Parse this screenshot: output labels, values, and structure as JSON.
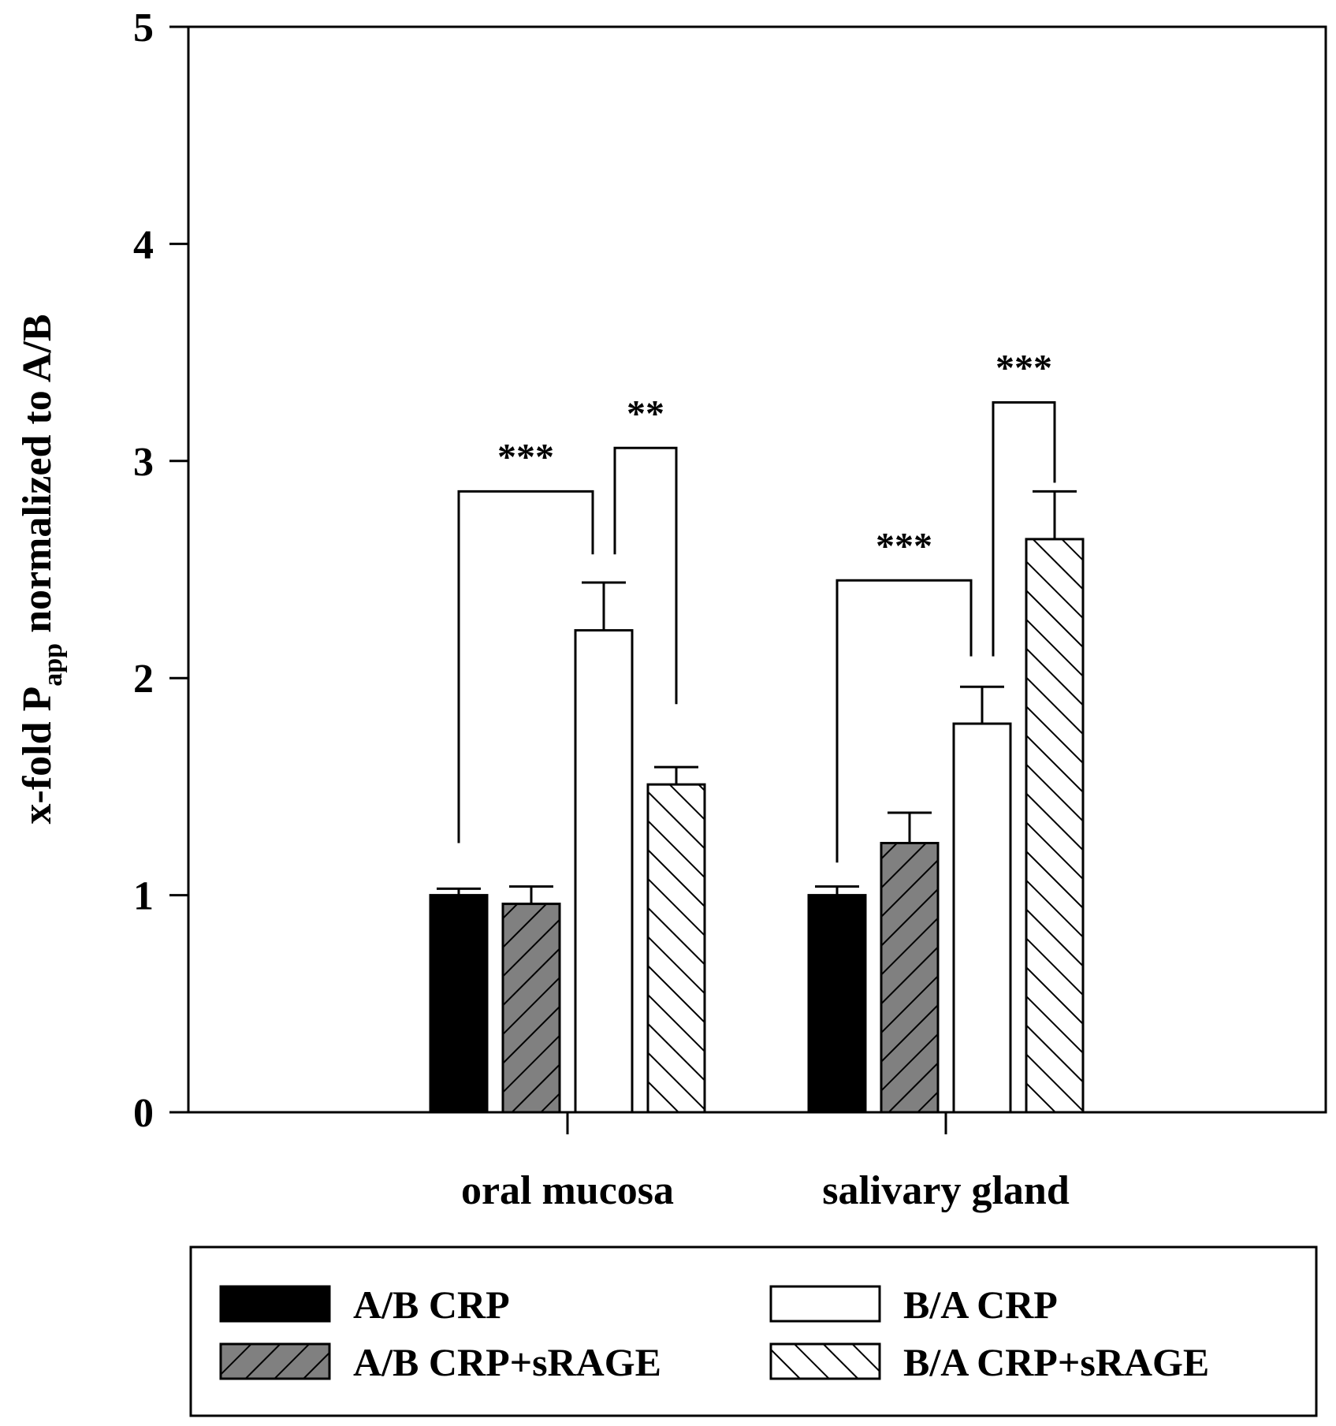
{
  "chart_data": {
    "type": "bar",
    "ylabel_main": "x-fold P",
    "ylabel_sub": "app",
    "ylabel_tail": " normalized to A/B",
    "ylim": [
      0,
      5
    ],
    "yticks": [
      "0",
      "1",
      "2",
      "3",
      "4",
      "5"
    ],
    "categories": [
      "oral mucosa",
      "salivary  gland"
    ],
    "series": [
      {
        "name": "A/B CRP",
        "fill": "#000000",
        "pattern": "solid",
        "values": [
          1.0,
          1.0
        ],
        "errors": [
          0.03,
          0.04
        ]
      },
      {
        "name": "A/B CRP+sRAGE",
        "fill": "#808080",
        "pattern": "hatch-forward",
        "values": [
          0.96,
          1.24
        ],
        "errors": [
          0.08,
          0.14
        ]
      },
      {
        "name": "B/A CRP",
        "fill": "#ffffff",
        "pattern": "solid",
        "values": [
          2.22,
          1.79
        ],
        "errors": [
          0.22,
          0.17
        ]
      },
      {
        "name": "B/A CRP+sRAGE",
        "fill": "#ffffff",
        "pattern": "hatch-back",
        "values": [
          1.51,
          2.64
        ],
        "errors": [
          0.08,
          0.22
        ]
      }
    ],
    "annotations": [
      {
        "category": 0,
        "from_series": 0,
        "to_series": 2,
        "label": "***",
        "bracket_y": 2.86,
        "left_end": 1.24,
        "right_end": 2.57
      },
      {
        "category": 0,
        "from_series": 2,
        "to_series": 3,
        "label": "**",
        "bracket_y": 3.06,
        "left_end": 2.57,
        "right_end": 1.88
      },
      {
        "category": 1,
        "from_series": 0,
        "to_series": 2,
        "label": "***",
        "bracket_y": 2.45,
        "left_end": 1.15,
        "right_end": 2.1
      },
      {
        "category": 1,
        "from_series": 2,
        "to_series": 3,
        "label": "***",
        "bracket_y": 3.27,
        "left_end": 2.1,
        "right_end": 2.9
      }
    ],
    "legend": {
      "placement": "below",
      "entries": [
        "A/B CRP",
        "A/B CRP+sRAGE",
        "B/A CRP",
        "B/A CRP+sRAGE"
      ]
    }
  }
}
